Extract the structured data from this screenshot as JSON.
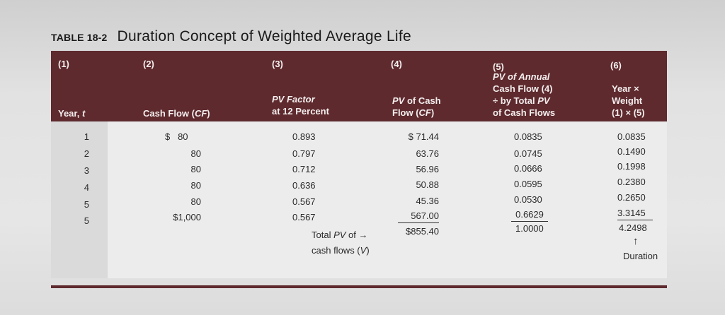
{
  "table_label": "TABLE 18-2",
  "table_title": "Duration Concept of Weighted Average Life",
  "columns": [
    {
      "num": "(1)",
      "label": "Year, t"
    },
    {
      "num": "(2)",
      "label": "Cash Flow (CF)"
    },
    {
      "num": "(3)",
      "label_line1": "PV Factor",
      "label_line2": "at 12 Percent"
    },
    {
      "num": "(4)",
      "label_line1": "PV of Cash",
      "label_line2": "Flow (CF)"
    },
    {
      "num": "(5)",
      "label_line1": "PV of Annual",
      "label_line2": "Cash Flow (4)",
      "label_line3": "÷ by Total PV",
      "label_line4": "of Cash Flows"
    },
    {
      "num": "(6)",
      "label_line1": "Year ×",
      "label_line2": "Weight",
      "label_line3": "(1) × (5)"
    }
  ],
  "rows": [
    {
      "year": "1",
      "cash_flow": "$   80",
      "pv_factor": "0.893",
      "pv_cash": "$ 71.44",
      "weight": "0.0835",
      "year_weight": "0.0835"
    },
    {
      "year": "2",
      "cash_flow": "80",
      "pv_factor": "0.797",
      "pv_cash": "63.76",
      "weight": "0.0745",
      "year_weight": "0.1490"
    },
    {
      "year": "3",
      "cash_flow": "80",
      "pv_factor": "0.712",
      "pv_cash": "56.96",
      "weight": "0.0666",
      "year_weight": "0.1998"
    },
    {
      "year": "4",
      "cash_flow": "80",
      "pv_factor": "0.636",
      "pv_cash": "50.88",
      "weight": "0.0595",
      "year_weight": "0.2380"
    },
    {
      "year": "5",
      "cash_flow": "80",
      "pv_factor": "0.567",
      "pv_cash": "45.36",
      "weight": "0.0530",
      "year_weight": "0.2650"
    },
    {
      "year": "5",
      "cash_flow": "$1,000",
      "pv_factor": "0.567",
      "pv_cash": "567.00",
      "weight": "0.6629",
      "year_weight": "3.3145"
    }
  ],
  "totals": {
    "label_line1": "Total PV of →",
    "label_line2": "cash flows (V)",
    "pv_total": "$855.40",
    "weight_total": "1.0000",
    "duration_value": "4.2498",
    "arrow": "↑",
    "duration_label": "Duration"
  }
}
